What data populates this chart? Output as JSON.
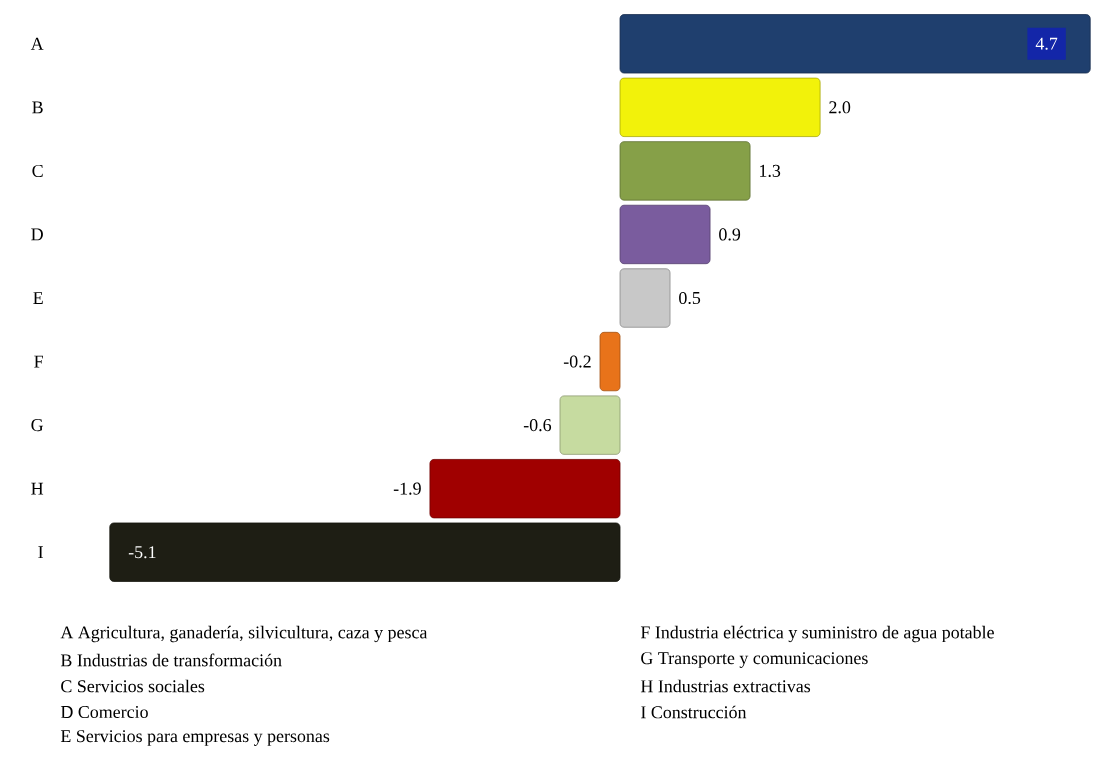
{
  "chart_data": {
    "type": "bar",
    "orientation": "horizontal",
    "categories": [
      "A",
      "B",
      "C",
      "D",
      "E",
      "F",
      "G",
      "H",
      "I"
    ],
    "values": [
      4.7,
      2.0,
      1.3,
      0.9,
      0.5,
      -0.2,
      -0.6,
      -1.9,
      -5.1
    ],
    "colors": [
      "#1f3f6e",
      "#f2f20a",
      "#86a048",
      "#7a5c9e",
      "#c8c8c8",
      "#e8731a",
      "#c6dba0",
      "#a00000",
      "#1e1e14"
    ],
    "value_labels": [
      "4.7",
      "2.0",
      "1.3",
      "0.9",
      "0.5",
      "-0.2",
      "-0.6",
      "-1.9",
      "-5.1"
    ],
    "annotations": [
      "A Agricultura, ganadería, silvicultura, caza y pesca",
      "B Industrias de transformación",
      "C Servicios sociales",
      "D Comercio",
      "E Servicios para empresas y personas",
      "F Industria eléctrica y suministro de agua potable",
      "G Transporte y comunicaciones",
      "H Industrias extractivas",
      "I Construcción"
    ]
  }
}
